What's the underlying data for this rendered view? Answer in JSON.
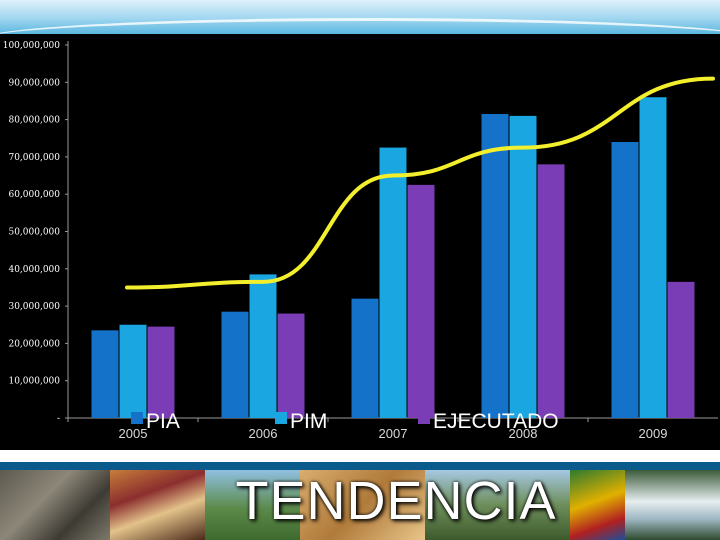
{
  "slide_title": "TENDENCIA",
  "chart_data": {
    "type": "bar",
    "categories": [
      "2005",
      "2006",
      "2007",
      "2008",
      "2009"
    ],
    "series": [
      {
        "name": "PIA",
        "color": "#1473c8",
        "values": [
          23500000,
          28500000,
          32000000,
          81500000,
          74000000
        ]
      },
      {
        "name": "PIM",
        "color": "#1aa6e0",
        "values": [
          25000000,
          38500000,
          72500000,
          81000000,
          86000000
        ]
      },
      {
        "name": "EJECUTADO",
        "color": "#7b3db5",
        "values": [
          24500000,
          28000000,
          62500000,
          68000000,
          36500000
        ]
      }
    ],
    "trend_line": {
      "color": "#f3ef2c",
      "points": [
        {
          "x": "2005",
          "y": 35000000
        },
        {
          "x": "2006",
          "y": 36500000
        },
        {
          "x": "2007",
          "y": 65000000
        },
        {
          "x": "2008",
          "y": 72500000
        },
        {
          "x": "2009",
          "y": 91000000
        }
      ]
    },
    "y_ticks": [
      "-",
      "10,000,000",
      "20,000,000",
      "30,000,000",
      "40,000,000",
      "50,000,000",
      "60,000,000",
      "70,000,000",
      "80,000,000",
      "90,000,000",
      "100,000,000"
    ],
    "ylim": [
      0,
      100000000
    ],
    "grid": false,
    "legend": "bottom"
  },
  "colors": {
    "chart_background": "#000000",
    "footer_band": "#0a5a8c",
    "axis": "#9a9a9a"
  }
}
